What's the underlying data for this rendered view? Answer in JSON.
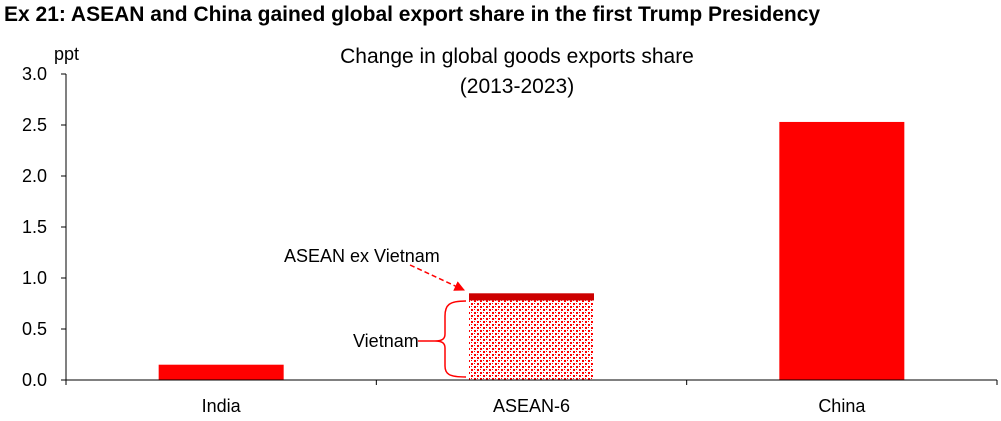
{
  "exhibit_title": "Ex 21: ASEAN and China gained global export share in the first Trump Presidency",
  "colors": {
    "bar": "#ff0000",
    "dark_segment": "#cc0000",
    "pattern_bg": "#ffffff"
  },
  "chart_data": {
    "type": "bar",
    "title": "Change in global goods exports share",
    "subtitle": "(2013-2023)",
    "ylabel": "ppt",
    "xlabel": "",
    "ylim": [
      0,
      3.0
    ],
    "yticks": [
      "0.0",
      "0.5",
      "1.0",
      "1.5",
      "2.0",
      "2.5",
      "3.0"
    ],
    "categories": [
      "India",
      "ASEAN-6",
      "China"
    ],
    "values": [
      0.15,
      0.85,
      2.53
    ],
    "stack_breakdown": {
      "category": "ASEAN-6",
      "segments": [
        {
          "name": "Vietnam",
          "value": 0.78,
          "fill": "pattern"
        },
        {
          "name": "ASEAN ex Vietnam",
          "value": 0.07,
          "fill": "solid"
        }
      ]
    },
    "annotations": [
      "ASEAN ex Vietnam",
      "Vietnam"
    ],
    "grid": false,
    "legend": "none"
  }
}
